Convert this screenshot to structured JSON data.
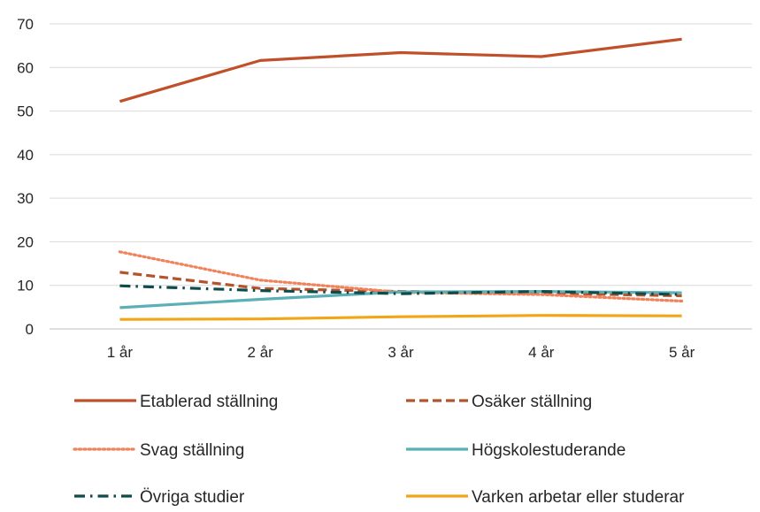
{
  "chart_data": {
    "type": "line",
    "title": "",
    "xlabel": "",
    "ylabel": "",
    "categories": [
      "1 år",
      "2 år",
      "3 år",
      "4 år",
      "5 år"
    ],
    "ylim": [
      0,
      70
    ],
    "yticks": [
      0,
      10,
      20,
      30,
      40,
      50,
      60,
      70
    ],
    "grid": "horizontal",
    "legend_position": "bottom",
    "series": [
      {
        "name": "Etablerad ställning",
        "values": [
          52.2,
          61.6,
          63.4,
          62.5,
          66.5
        ],
        "color": "#C0502A",
        "style": "solid"
      },
      {
        "name": "Osäker ställning",
        "values": [
          13.0,
          9.3,
          8.6,
          8.2,
          7.6
        ],
        "color": "#B5532B",
        "style": "dashed"
      },
      {
        "name": "Svag ställning",
        "values": [
          17.7,
          11.2,
          8.4,
          7.9,
          6.4
        ],
        "color": "#F0835C",
        "style": "dotted"
      },
      {
        "name": "Högskolestuderande",
        "values": [
          4.9,
          6.8,
          8.5,
          8.6,
          8.3
        ],
        "color": "#5BB0B5",
        "style": "solid"
      },
      {
        "name": "Övriga studier",
        "values": [
          9.9,
          8.8,
          8.1,
          8.6,
          7.9
        ],
        "color": "#0E4B4B",
        "style": "dashdot"
      },
      {
        "name": "Varken arbetar eller studerar",
        "values": [
          2.2,
          2.3,
          2.8,
          3.1,
          3.0
        ],
        "color": "#F2A516",
        "style": "solid"
      }
    ]
  }
}
